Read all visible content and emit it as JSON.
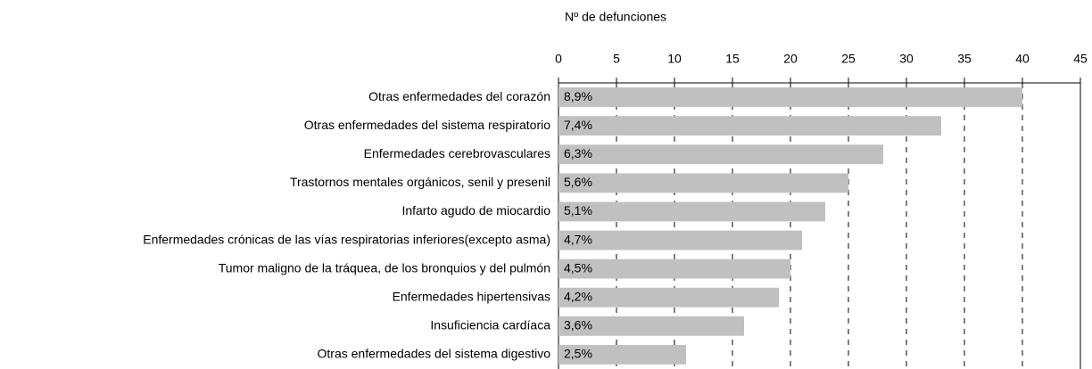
{
  "chart_data": {
    "type": "bar",
    "orientation": "horizontal",
    "x_label": "Nº de defunciones",
    "categories": [
      "Otras enfermedades del corazón",
      "Otras enfermedades del sistema respiratorio",
      "Enfermedades cerebrovasculares",
      "Trastornos mentales orgánicos, senil y presenil",
      "Infarto agudo de miocardio",
      "Enfermedades crónicas de las vías respiratorias inferiores(excepto asma)",
      "Tumor maligno de la tráquea, de los bronquios y del pulmón",
      "Enfermedades hipertensivas",
      "Insuficiencia cardíaca",
      "Otras enfermedades del sistema digestivo"
    ],
    "values": [
      40,
      33,
      28,
      25,
      23,
      21,
      20,
      19,
      16,
      11
    ],
    "percent_labels": [
      "8,9%",
      "7,4%",
      "6,3%",
      "5,6%",
      "5,1%",
      "4,7%",
      "4,5%",
      "4,2%",
      "3,6%",
      "2,5%"
    ],
    "color": "#c0c0c0",
    "xlim": [
      0,
      45
    ],
    "xticks": [
      0,
      5,
      10,
      15,
      20,
      25,
      30,
      35,
      40,
      45
    ],
    "grid": true
  }
}
